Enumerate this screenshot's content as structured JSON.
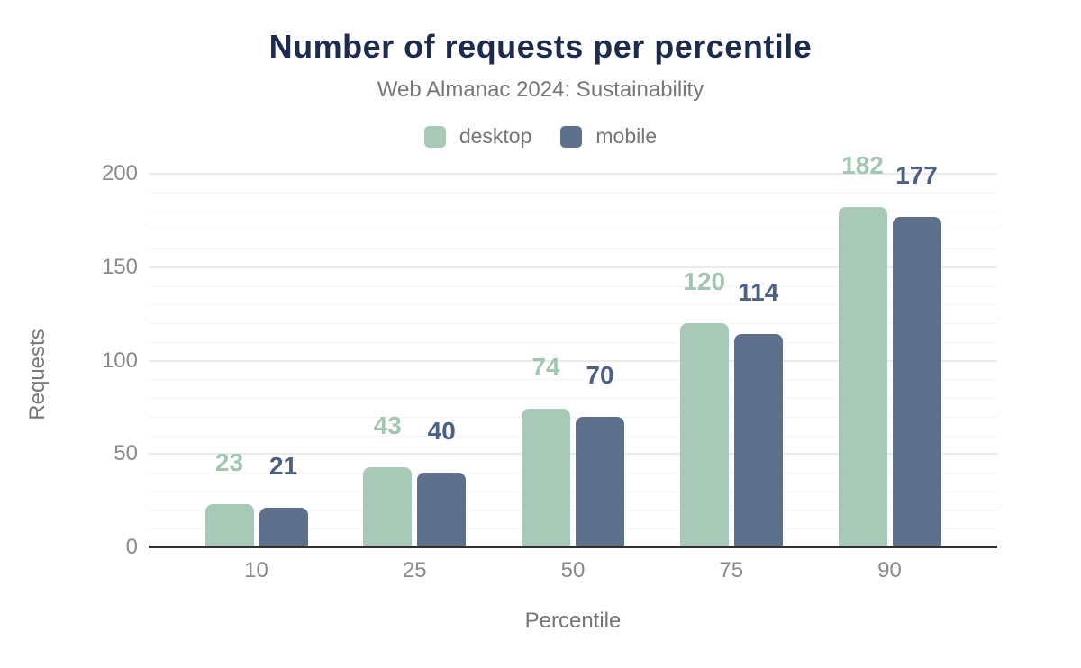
{
  "chart_data": {
    "type": "bar",
    "title": "Number of requests per percentile",
    "subtitle": "Web Almanac 2024: Sustainability",
    "xlabel": "Percentile",
    "ylabel": "Requests",
    "categories": [
      "10",
      "25",
      "50",
      "75",
      "90"
    ],
    "series": [
      {
        "name": "desktop",
        "values": [
          23,
          43,
          74,
          120,
          182
        ],
        "color": "#a8c9b8",
        "label_color": "#a3c6b3"
      },
      {
        "name": "mobile",
        "values": [
          21,
          40,
          70,
          114,
          177
        ],
        "color": "#5e708c",
        "label_color": "#4e6184"
      }
    ],
    "ylim": [
      0,
      200
    ],
    "yticks": [
      0,
      50,
      100,
      150,
      200
    ],
    "minor_tick_step": 10,
    "grid": true,
    "legend_position": "top",
    "data_labels": true
  },
  "colors": {
    "background": "#ffffff",
    "title": "#1d2b4e",
    "subtitle": "#767676",
    "tick": "#8a8a8a",
    "axis_line": "#2f2f2f",
    "grid_major": "#eaeaea",
    "grid_minor": "#f5f5f5"
  }
}
